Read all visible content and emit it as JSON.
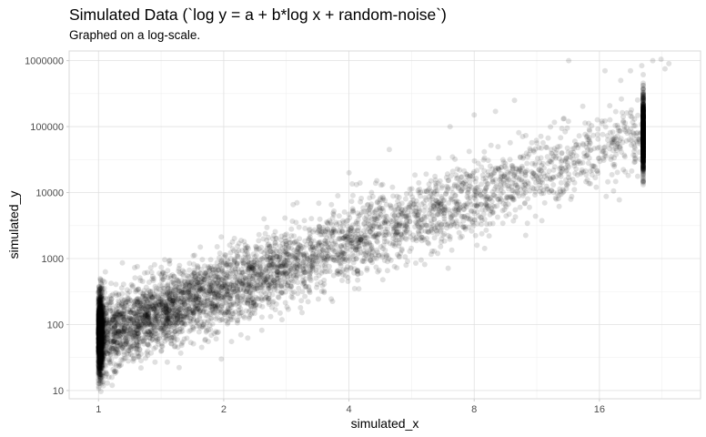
{
  "chart_data": {
    "type": "scatter",
    "title": "Simulated Data (`log y = a + b*log x + random-noise`)",
    "subtitle": "Graphed on a log-scale.",
    "xlabel": "simulated_x",
    "ylabel": "simulated_y",
    "x_scale": "log2",
    "y_scale": "log10",
    "xlim": [
      0.85,
      28
    ],
    "ylim": [
      7.5,
      1400000
    ],
    "x_ticks": [
      1,
      2,
      4,
      8,
      16
    ],
    "x_tick_labels": [
      "1",
      "2",
      "4",
      "8",
      "16"
    ],
    "y_ticks": [
      10,
      100,
      1000,
      10000,
      100000,
      1000000
    ],
    "y_tick_labels": [
      "10",
      "100",
      "1000",
      "10000",
      "100000",
      "1000000"
    ],
    "grid": true,
    "point_color": "#000000",
    "point_alpha": 0.12,
    "relationship": {
      "a_log10": 1.85,
      "b": 2.3
    },
    "sample_points": [
      {
        "x": 1.0,
        "y": 15
      },
      {
        "x": 1.0,
        "y": 25
      },
      {
        "x": 1.0,
        "y": 60
      },
      {
        "x": 1.0,
        "y": 120
      },
      {
        "x": 1.0,
        "y": 200
      },
      {
        "x": 1.0,
        "y": 250
      },
      {
        "x": 1.05,
        "y": 13
      },
      {
        "x": 1.1,
        "y": 300
      },
      {
        "x": 1.2,
        "y": 400
      },
      {
        "x": 1.4,
        "y": 600
      },
      {
        "x": 2.2,
        "y": 70
      },
      {
        "x": 2.5,
        "y": 4000
      },
      {
        "x": 3.0,
        "y": 7000
      },
      {
        "x": 4.0,
        "y": 20000
      },
      {
        "x": 5.0,
        "y": 45000
      },
      {
        "x": 7.0,
        "y": 100000
      },
      {
        "x": 8.0,
        "y": 150000
      },
      {
        "x": 9.0,
        "y": 170000
      },
      {
        "x": 10.0,
        "y": 250000
      },
      {
        "x": 12.0,
        "y": 35000
      },
      {
        "x": 13.0,
        "y": 40000
      },
      {
        "x": 13.5,
        "y": 1000000
      },
      {
        "x": 16.5,
        "y": 700000
      },
      {
        "x": 18.0,
        "y": 500000
      },
      {
        "x": 19.0,
        "y": 700000
      },
      {
        "x": 21.5,
        "y": 1000000
      },
      {
        "x": 22.5,
        "y": 1050000
      },
      {
        "x": 23.5,
        "y": 900000
      },
      {
        "x": 23.0,
        "y": 750000
      }
    ]
  }
}
